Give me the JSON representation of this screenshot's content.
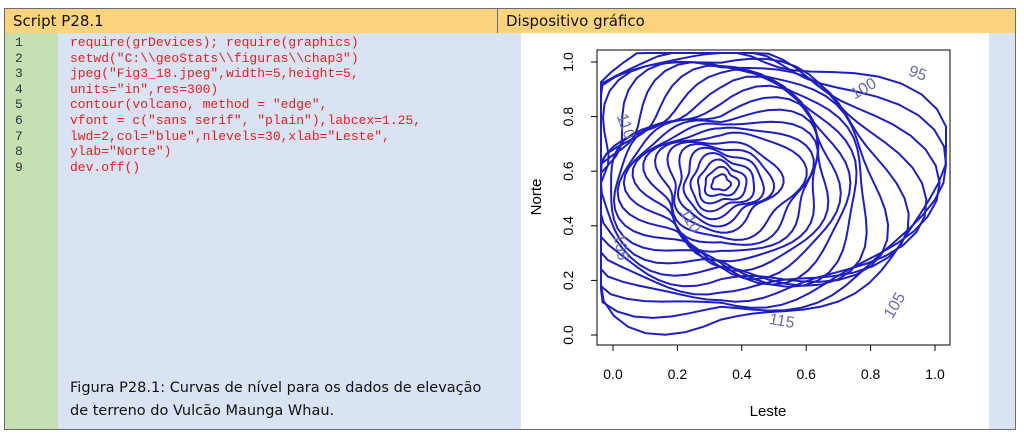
{
  "left": {
    "header": "Script P28.1",
    "line_numbers": [
      "1",
      "2",
      "3",
      "4",
      "5",
      "6",
      "7",
      "8",
      "9"
    ],
    "code": [
      "require(grDevices); require(graphics)",
      "setwd(\"C:\\\\geoStats\\\\figuras\\\\chap3\")",
      "jpeg(\"Fig3_18.jpeg\",width=5,height=5,",
      "units=\"in\",res=300)",
      "contour(volcano, method = \"edge\",",
      "vfont = c(\"sans serif\", \"plain\"),labcex=1.25,",
      "lwd=2,col=\"blue\",nlevels=30,xlab=\"Leste\",",
      "ylab=\"Norte\")",
      "dev.off()"
    ],
    "caption": [
      "Figura P28.1: Curvas de nível para os dados de elevação",
      "de terreno do Vulcão Maunga Whau."
    ]
  },
  "right": {
    "header": "Dispositivo gráfico",
    "plot": {
      "x_label": "Leste",
      "y_label": "Norte",
      "x_ticks": [
        "0.0",
        "0.2",
        "0.4",
        "0.6",
        "0.8",
        "1.0"
      ],
      "y_ticks": [
        "0.0",
        "0.2",
        "0.4",
        "0.6",
        "0.8",
        "1.0"
      ],
      "contour_labels": [
        "100",
        "95",
        "110",
        "105",
        "105",
        "115",
        "110"
      ]
    }
  }
}
